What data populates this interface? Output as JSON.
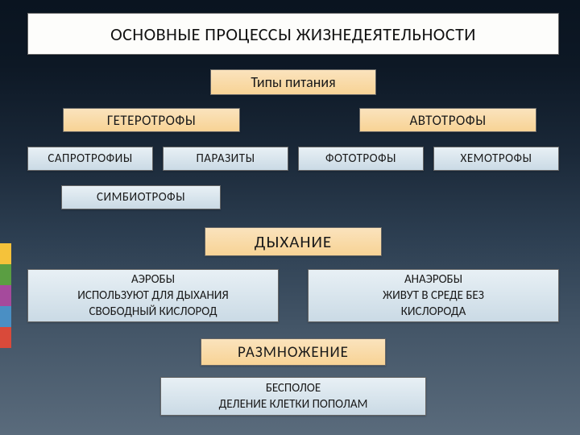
{
  "colors": {
    "stripe1": "#f5c23a",
    "stripe2": "#5a9e42",
    "stripe3": "#a54a9c",
    "stripe4": "#4a8fc4",
    "stripe5": "#d94a3a",
    "bg_top": "#0a1420",
    "bg_bottom": "#5a6b7c",
    "orange_top": "#fae3bd",
    "orange_bottom": "#f8d395",
    "blue_top": "#e8f0f5",
    "blue_bottom": "#cadae5",
    "title_bg": "#fdfdfb"
  },
  "fonts": {
    "title_size": 22,
    "section_size": 20,
    "label_size": 15
  },
  "title": "ОСНОВНЫЕ  ПРОЦЕССЫ ЖИЗНЕДЕЯТЕЛЬНОСТИ",
  "nutrition": {
    "header": "Типы питания",
    "cat_left": "ГЕТЕРОТРОФЫ",
    "cat_right": "АВТОТРОФЫ",
    "sub1": "САПРОТРОФИЫ",
    "sub2": "ПАРАЗИТЫ",
    "sub3": "ФОТОТРОФЫ",
    "sub4": "ХЕМОТРОФЫ",
    "sym": "СИМБИОТРОФЫ"
  },
  "breathing": {
    "header": "ДЫХАНИЕ",
    "left_line1": "АЭРОБЫ",
    "left_line2": "ИСПОЛЬЗУЮТ ДЛЯ ДЫХАНИЯ",
    "left_line3": "СВОБОДНЫЙ КИСЛОРОД",
    "right_line1": "АНАЭРОБЫ",
    "right_line2": "ЖИВУТ В СРЕДЕ БЕЗ",
    "right_line3": "КИСЛОРОДА"
  },
  "reproduction": {
    "header": "РАЗМНОЖЕНИЕ",
    "line1": "БЕСПОЛОЕ",
    "line2": "ДЕЛЕНИЕ КЛЕТКИ ПОПОЛАМ"
  }
}
